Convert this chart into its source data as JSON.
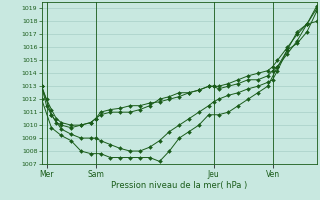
{
  "title": "Pression niveau de la mer( hPa )",
  "bg_color": "#c8e8e0",
  "grid_color": "#a0c8c0",
  "line_color": "#1a5c1a",
  "ylim": [
    1007,
    1019.5
  ],
  "yticks": [
    1007,
    1008,
    1009,
    1010,
    1011,
    1012,
    1013,
    1014,
    1015,
    1016,
    1017,
    1018,
    1019
  ],
  "day_labels": [
    "Mer",
    "Sam",
    "Jeu",
    "Ven"
  ],
  "day_positions": [
    0.5,
    5.5,
    17.5,
    23.5
  ],
  "xlim": [
    0,
    28
  ],
  "series1_x": [
    0,
    0.5,
    1,
    1.5,
    2,
    3,
    4,
    5,
    5.5,
    6,
    7,
    8,
    9,
    10,
    11,
    12,
    13,
    14,
    15,
    16,
    17,
    17.5,
    18,
    19,
    20,
    21,
    22,
    23,
    23.5,
    24,
    25,
    26,
    27,
    28
  ],
  "series1_y": [
    1013.0,
    1011.5,
    1010.8,
    1010.2,
    1010.0,
    1009.8,
    1010.0,
    1010.2,
    1010.5,
    1011.0,
    1011.2,
    1011.3,
    1011.5,
    1011.5,
    1011.7,
    1011.8,
    1012.0,
    1012.2,
    1012.5,
    1012.7,
    1013.0,
    1013.0,
    1013.0,
    1013.2,
    1013.5,
    1013.8,
    1014.0,
    1014.2,
    1014.5,
    1015.0,
    1016.0,
    1017.0,
    1017.8,
    1019.0
  ],
  "series2_x": [
    0,
    0.5,
    1,
    1.5,
    2,
    3,
    4,
    5,
    5.5,
    6,
    7,
    8,
    9,
    10,
    11,
    12,
    13,
    14,
    15,
    16,
    17,
    17.5,
    18,
    19,
    20,
    21,
    22,
    23,
    23.5,
    24,
    25,
    26,
    27,
    28
  ],
  "series2_y": [
    1013.0,
    1012.0,
    1011.2,
    1010.5,
    1010.2,
    1010.0,
    1010.0,
    1010.2,
    1010.5,
    1010.8,
    1011.0,
    1011.0,
    1011.0,
    1011.2,
    1011.5,
    1012.0,
    1012.2,
    1012.5,
    1012.5,
    1012.7,
    1013.0,
    1013.0,
    1012.8,
    1013.0,
    1013.2,
    1013.5,
    1013.5,
    1013.8,
    1014.2,
    1014.5,
    1015.5,
    1016.5,
    1017.8,
    1018.0
  ],
  "series3_x": [
    0,
    1,
    2,
    3,
    4,
    5,
    5.5,
    6,
    7,
    8,
    9,
    10,
    11,
    12,
    13,
    14,
    15,
    16,
    17,
    17.5,
    18,
    19,
    20,
    21,
    22,
    23,
    23.5,
    24,
    25,
    26,
    27,
    28
  ],
  "series3_y": [
    1013.0,
    1010.8,
    1009.7,
    1009.3,
    1009.0,
    1009.0,
    1009.0,
    1008.8,
    1008.5,
    1008.2,
    1008.0,
    1008.0,
    1008.3,
    1008.8,
    1009.5,
    1010.0,
    1010.5,
    1011.0,
    1011.5,
    1011.8,
    1012.0,
    1012.3,
    1012.5,
    1012.8,
    1013.0,
    1013.3,
    1013.5,
    1014.2,
    1015.8,
    1017.2,
    1017.8,
    1019.2
  ],
  "series4_x": [
    0,
    1,
    2,
    3,
    4,
    5,
    6,
    7,
    8,
    9,
    10,
    11,
    12,
    13,
    14,
    15,
    16,
    17,
    18,
    19,
    20,
    21,
    22,
    23,
    24,
    25,
    26,
    27,
    28
  ],
  "series4_y": [
    1012.0,
    1009.8,
    1009.2,
    1008.8,
    1008.0,
    1007.8,
    1007.8,
    1007.5,
    1007.5,
    1007.5,
    1007.5,
    1007.5,
    1007.2,
    1008.0,
    1009.0,
    1009.5,
    1010.0,
    1010.8,
    1010.8,
    1011.0,
    1011.5,
    1012.0,
    1012.5,
    1013.0,
    1014.5,
    1015.8,
    1016.3,
    1017.2,
    1018.8
  ]
}
